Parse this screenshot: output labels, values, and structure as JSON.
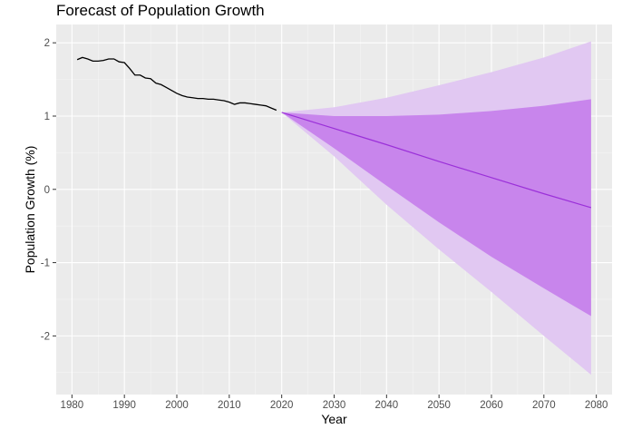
{
  "chart_data": {
    "type": "line",
    "title": "Forecast of Population Growth",
    "xlabel": "Year",
    "ylabel": "Population Growth (%)",
    "xlim": [
      1977,
      2083
    ],
    "ylim": [
      -2.8,
      2.25
    ],
    "x_ticks": [
      1980,
      1990,
      2000,
      2010,
      2020,
      2030,
      2040,
      2050,
      2060,
      2070,
      2080
    ],
    "y_ticks": [
      -2,
      -1,
      0,
      1,
      2
    ],
    "grid": true,
    "legend": "none",
    "colors": {
      "panel": "#ebebeb",
      "grid_major": "#ffffff",
      "history_line": "#000000",
      "forecast_line": "#9b30d9",
      "band_80": "#c885ec",
      "band_95": "#e1c8f2",
      "tick_label": "#4d4d4d"
    },
    "history": {
      "x": [
        1981,
        1982,
        1983,
        1984,
        1985,
        1986,
        1987,
        1988,
        1989,
        1990,
        1991,
        1992,
        1993,
        1994,
        1995,
        1996,
        1997,
        1998,
        1999,
        2000,
        2001,
        2002,
        2003,
        2004,
        2005,
        2006,
        2007,
        2008,
        2009,
        2010,
        2011,
        2012,
        2013,
        2014,
        2015,
        2016,
        2017,
        2018,
        2019
      ],
      "y": [
        1.77,
        1.8,
        1.78,
        1.75,
        1.75,
        1.76,
        1.78,
        1.78,
        1.74,
        1.73,
        1.65,
        1.56,
        1.56,
        1.52,
        1.51,
        1.45,
        1.43,
        1.39,
        1.35,
        1.31,
        1.28,
        1.26,
        1.25,
        1.24,
        1.24,
        1.23,
        1.23,
        1.22,
        1.21,
        1.19,
        1.16,
        1.18,
        1.18,
        1.17,
        1.16,
        1.15,
        1.14,
        1.11,
        1.08
      ]
    },
    "forecast": {
      "x": [
        2020,
        2030,
        2040,
        2050,
        2060,
        2070,
        2079
      ],
      "mean": [
        1.05,
        0.83,
        0.61,
        0.38,
        0.16,
        -0.06,
        -0.25
      ],
      "lo80": [
        1.05,
        0.56,
        0.05,
        -0.45,
        -0.92,
        -1.35,
        -1.73
      ],
      "hi80": [
        1.05,
        1.0,
        1.0,
        1.02,
        1.07,
        1.14,
        1.23
      ],
      "lo95": [
        1.05,
        0.45,
        -0.21,
        -0.82,
        -1.4,
        -2.0,
        -2.53
      ],
      "hi95": [
        1.05,
        1.12,
        1.25,
        1.42,
        1.6,
        1.8,
        2.02
      ]
    }
  }
}
